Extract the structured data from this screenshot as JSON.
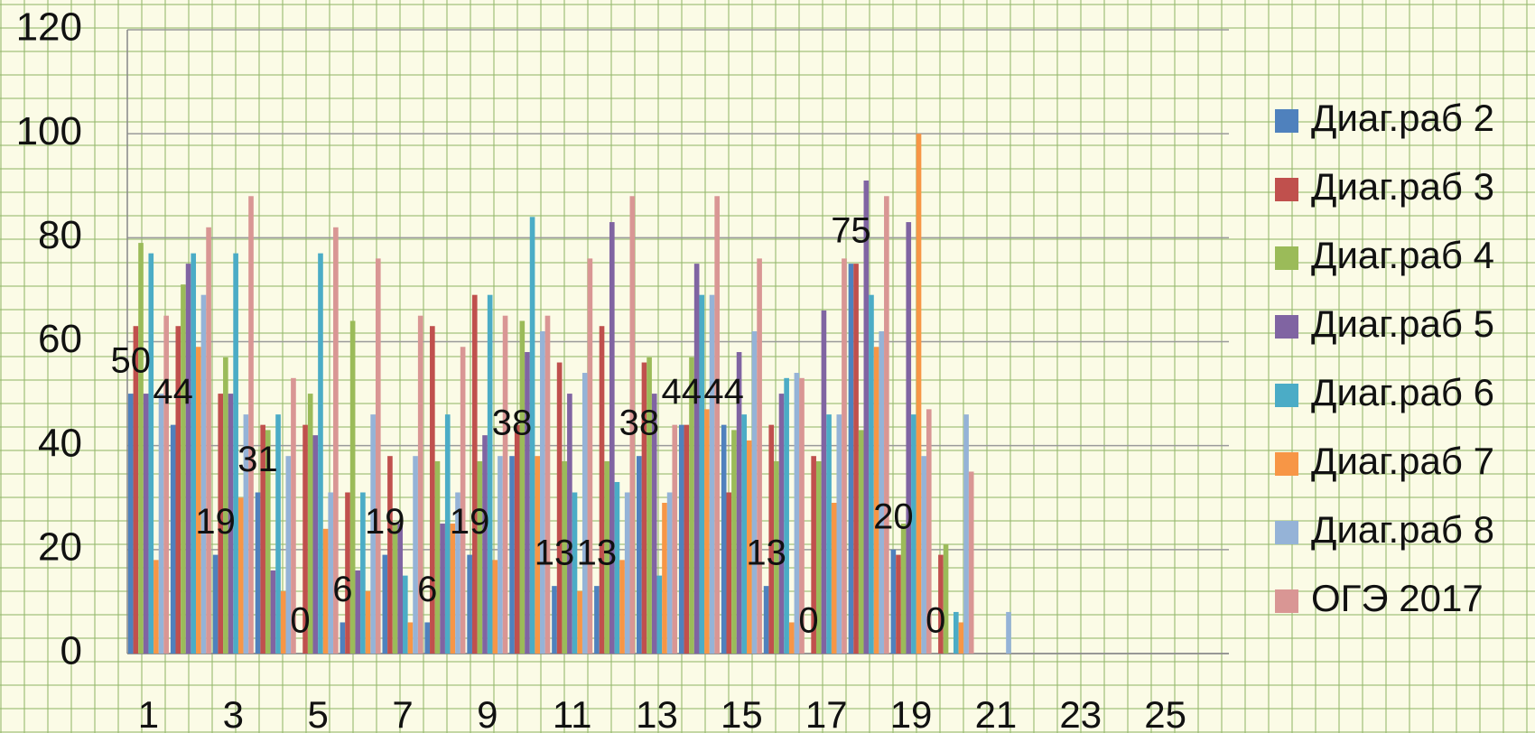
{
  "chart_data": {
    "type": "bar",
    "categories": [
      "1",
      null,
      "3",
      null,
      "5",
      null,
      "7",
      null,
      "9",
      null,
      "11",
      null,
      "13",
      null,
      "15",
      null,
      "17",
      null,
      "19",
      null,
      "21",
      null,
      "23",
      null,
      "25",
      null
    ],
    "series": [
      {
        "name": "Диаг.раб 2",
        "color": "#4f81bd",
        "values": [
          50,
          44,
          19,
          31,
          0,
          6,
          19,
          6,
          19,
          38,
          13,
          13,
          38,
          44,
          44,
          13,
          0,
          75,
          20,
          0,
          null,
          null,
          null,
          null,
          null,
          null
        ]
      },
      {
        "name": "Диаг.раб 3",
        "color": "#c0504d",
        "values": [
          63,
          63,
          50,
          44,
          44,
          31,
          38,
          63,
          69,
          44,
          56,
          63,
          56,
          44,
          31,
          44,
          38,
          75,
          19,
          19,
          null,
          null,
          null,
          null,
          null,
          null
        ]
      },
      {
        "name": "Диаг.раб 4",
        "color": "#9bbb59",
        "values": [
          79,
          71,
          57,
          43,
          50,
          64,
          25,
          37,
          37,
          64,
          37,
          37,
          57,
          57,
          43,
          37,
          37,
          43,
          25,
          21,
          null,
          null,
          null,
          null,
          null,
          null
        ]
      },
      {
        "name": "Диаг.раб 5",
        "color": "#8064a2",
        "values": [
          50,
          75,
          50,
          16,
          42,
          16,
          25,
          25,
          42,
          58,
          50,
          83,
          50,
          75,
          58,
          50,
          66,
          91,
          83,
          0,
          null,
          null,
          null,
          null,
          null,
          null
        ]
      },
      {
        "name": "Диаг.раб 6",
        "color": "#4bacc6",
        "values": [
          77,
          77,
          77,
          46,
          77,
          31,
          15,
          46,
          69,
          84,
          31,
          33,
          15,
          69,
          46,
          53,
          46,
          69,
          46,
          8,
          null,
          null,
          null,
          null,
          null,
          null
        ]
      },
      {
        "name": "Диаг.раб 7",
        "color": "#f79646",
        "values": [
          18,
          59,
          30,
          12,
          24,
          12,
          6,
          25,
          18,
          38,
          12,
          18,
          29,
          47,
          41,
          6,
          29,
          59,
          100,
          6,
          null,
          null,
          null,
          null,
          null,
          null
        ]
      },
      {
        "name": "Диаг.раб 8",
        "color": "#95b3d7",
        "values": [
          50,
          69,
          46,
          38,
          31,
          46,
          38,
          31,
          38,
          62,
          54,
          31,
          31,
          69,
          62,
          54,
          46,
          62,
          38,
          46,
          8,
          null,
          null,
          null,
          null,
          null
        ]
      },
      {
        "name": "ОГЭ 2017",
        "color": "#d99694",
        "values": [
          65,
          82,
          88,
          53,
          82,
          76,
          65,
          59,
          65,
          65,
          76,
          88,
          44,
          88,
          76,
          53,
          76,
          88,
          47,
          35,
          null,
          null,
          null,
          null,
          null,
          null
        ]
      }
    ],
    "ylim": [
      0,
      120
    ],
    "yticks": [
      0,
      20,
      40,
      60,
      80,
      100,
      120
    ],
    "grid": true,
    "legend": "right",
    "data_labels_series": 0
  }
}
